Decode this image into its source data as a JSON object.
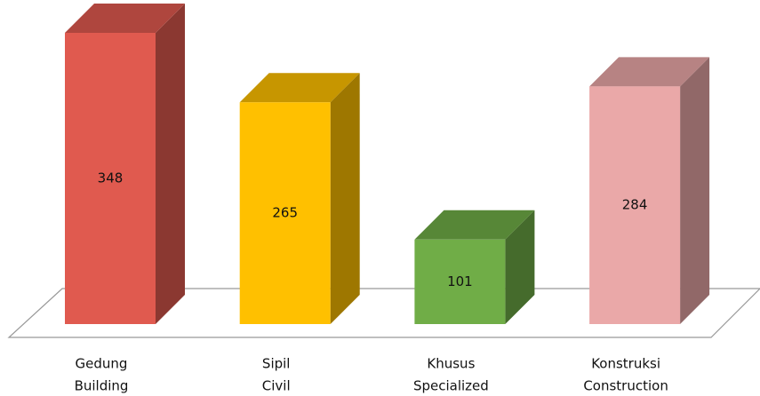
{
  "chart_data": {
    "type": "bar3d",
    "categories": [
      [
        "Gedung",
        "Building"
      ],
      [
        "Sipil",
        "Civil"
      ],
      [
        "Khusus",
        "Specialized"
      ],
      [
        "Konstruksi",
        "Construction"
      ]
    ],
    "values": [
      348,
      265,
      101,
      284
    ],
    "colors": [
      "#e05a4f",
      "#ffc000",
      "#70ad47",
      "#eaa8a8"
    ]
  }
}
